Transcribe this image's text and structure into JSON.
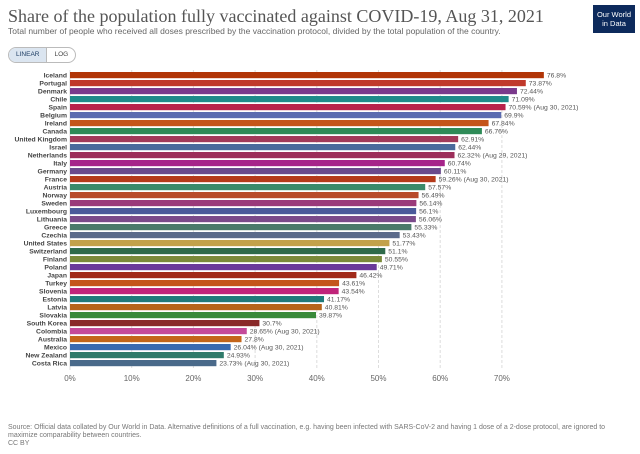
{
  "header": {
    "title": "Share of the population fully vaccinated against COVID-19, Aug 31, 2021",
    "subtitle": "Total number of people who received all doses prescribed by the vaccination protocol, divided by the total population of the country.",
    "logo_line1": "Our World",
    "logo_line2": "in Data"
  },
  "toggle": {
    "linear_label": "LINEAR",
    "log_label": "LOG",
    "active": "LINEAR"
  },
  "footer": {
    "source": "Source: Official data collated by Our World in Data. Alternative definitions of a full vaccination, e.g. having been infected with SARS-CoV-2 and having 1 dose of a 2-dose protocol, are ignored to maximize comparability between countries.",
    "license": "CC BY"
  },
  "colors": {
    "logo_bg": "#0d2a5c",
    "grid": "#dddddd",
    "text": "#555555"
  },
  "chart_data": {
    "type": "bar",
    "orientation": "horizontal",
    "title": "Share of the population fully vaccinated against COVID-19, Aug 31, 2021",
    "unit": "%",
    "xlim": [
      0,
      75
    ],
    "ticks": [
      "0%",
      "10%",
      "20%",
      "30%",
      "40%",
      "50%",
      "60%",
      "70%"
    ],
    "categories": [
      "Iceland",
      "Portugal",
      "Denmark",
      "Chile",
      "Spain",
      "Belgium",
      "Ireland",
      "Canada",
      "United Kingdom",
      "Israel",
      "Netherlands",
      "Italy",
      "Germany",
      "France",
      "Austria",
      "Norway",
      "Sweden",
      "Luxembourg",
      "Lithuania",
      "Greece",
      "Czechia",
      "United States",
      "Switzerland",
      "Finland",
      "Poland",
      "Japan",
      "Turkey",
      "Slovenia",
      "Estonia",
      "Latvia",
      "Slovakia",
      "South Korea",
      "Colombia",
      "Australia",
      "Mexico",
      "New Zealand",
      "Costa Rica"
    ],
    "values": [
      76.8,
      73.87,
      72.44,
      71.09,
      70.59,
      69.9,
      67.84,
      66.76,
      62.91,
      62.44,
      62.32,
      60.74,
      60.11,
      59.26,
      57.57,
      56.49,
      56.14,
      56.1,
      56.06,
      55.33,
      53.43,
      51.77,
      51.1,
      50.55,
      49.71,
      46.42,
      43.61,
      43.54,
      41.17,
      40.81,
      39.87,
      30.7,
      28.65,
      27.8,
      26.04,
      24.93,
      23.73
    ],
    "labels": [
      "76.8%",
      "73.87%",
      "72.44%",
      "71.09%",
      "70.59% (Aug 30, 2021)",
      "69.9%",
      "67.84%",
      "66.76%",
      "62.91%",
      "62.44%",
      "62.32% (Aug 29, 2021)",
      "60.74%",
      "60.11%",
      "59.26% (Aug 30, 2021)",
      "57.57%",
      "56.49%",
      "56.14%",
      "56.1%",
      "56.06%",
      "55.33%",
      "53.43%",
      "51.77%",
      "51.1%",
      "50.55%",
      "49.71%",
      "46.42%",
      "43.61%",
      "43.54%",
      "41.17%",
      "40.81%",
      "39.87%",
      "30.7%",
      "28.65% (Aug 30, 2021)",
      "27.8%",
      "26.04% (Aug 30, 2021)",
      "24.93%",
      "23.73% (Aug 30, 2021)"
    ],
    "colors": [
      "#b13507",
      "#c0392b",
      "#7a3a8c",
      "#1f8a8a",
      "#b8224a",
      "#5b6bb0",
      "#c4551a",
      "#2e8b57",
      "#a23a5a",
      "#4a6a9c",
      "#9c2e5a",
      "#a6248a",
      "#6a4a8c",
      "#b53a1a",
      "#3a8a6a",
      "#b84a2a",
      "#9a3a7a",
      "#4a5a9a",
      "#7a4a8a",
      "#4a7a6a",
      "#5a6a8a",
      "#c2a14a",
      "#2e6a4a",
      "#7a8a3a",
      "#6a3a9a",
      "#a12a1a",
      "#c4551a",
      "#c0247a",
      "#1f7a7a",
      "#b5641a",
      "#3a8a3a",
      "#8a2a2a",
      "#c44a9a",
      "#c4651a",
      "#3a6ab0",
      "#2e7a6a",
      "#4a6a8a"
    ]
  }
}
